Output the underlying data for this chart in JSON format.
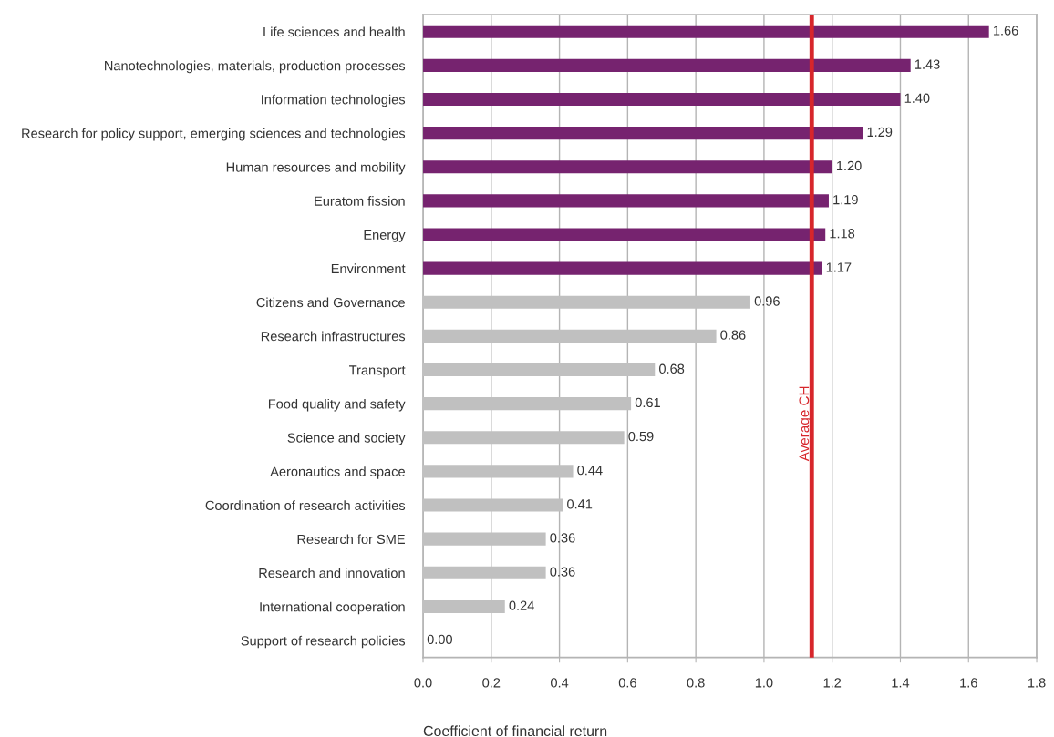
{
  "chart_data": {
    "type": "bar",
    "orientation": "horizontal",
    "categories": [
      "Life sciences and health",
      "Nanotechnologies, materials, production processes",
      "Information technologies",
      "Research for policy support, emerging sciences and technologies",
      "Human resources and mobility",
      "Euratom fission",
      "Energy",
      "Environment",
      "Citizens and Governance",
      "Research infrastructures",
      "Transport",
      "Food quality and safety",
      "Science and society",
      "Aeronautics and space",
      "Coordination of research activities",
      "Research for SME",
      "Research and innovation",
      "International cooperation",
      "Support of research policies"
    ],
    "values": [
      1.66,
      1.43,
      1.4,
      1.29,
      1.2,
      1.19,
      1.18,
      1.17,
      0.96,
      0.86,
      0.68,
      0.61,
      0.59,
      0.44,
      0.41,
      0.36,
      0.36,
      0.24,
      0.0
    ],
    "value_labels": [
      "1.66",
      "1.43",
      "1.40",
      "1.29",
      "1.20",
      "1.19",
      "1.18",
      "1.17",
      "0.96",
      "0.86",
      "0.68",
      "0.61",
      "0.59",
      "0.44",
      "0.41",
      "0.36",
      "0.36",
      "0.24",
      "0.00"
    ],
    "colors": [
      "#76236f",
      "#76236f",
      "#76236f",
      "#76236f",
      "#76236f",
      "#76236f",
      "#76236f",
      "#76236f",
      "#c0c0c0",
      "#c0c0c0",
      "#c0c0c0",
      "#c0c0c0",
      "#c0c0c0",
      "#c0c0c0",
      "#c0c0c0",
      "#c0c0c0",
      "#c0c0c0",
      "#c0c0c0",
      "#c0c0c0"
    ],
    "xlabel": "Coefficient of financial return",
    "xlim": [
      0,
      1.8
    ],
    "xticks": [
      {
        "value": 0,
        "label": "0.0"
      },
      0.2,
      0.4,
      0.6,
      0.8,
      {
        "value": 1,
        "label": "1.0"
      },
      1.2,
      1.4,
      1.6,
      1.8
    ],
    "ref_lines": [
      {
        "axis": "x",
        "value": 1.14,
        "label": "Average CH",
        "color": "#d7262b"
      }
    ],
    "grid": "x",
    "legend": false
  }
}
